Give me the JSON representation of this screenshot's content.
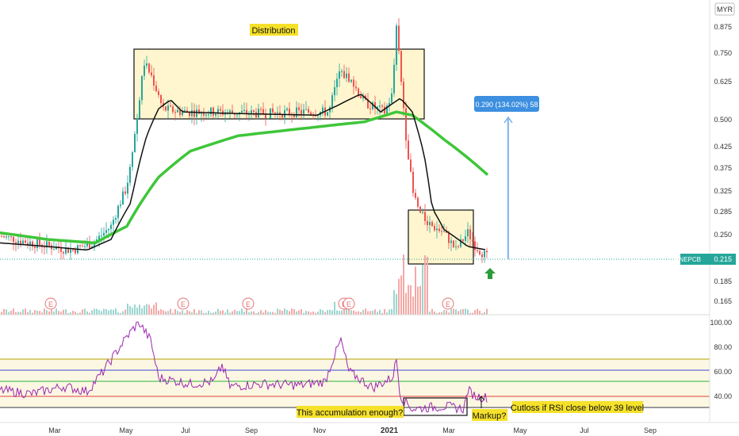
{
  "chart_data": {
    "type": "candlestick",
    "log_scale": true,
    "grid": false,
    "price_axis": {
      "label": "MYR",
      "ticks": [
        "0.875",
        "0.750",
        "0.625",
        "0.500",
        "0.425",
        "0.375",
        "0.325",
        "0.285",
        "0.250",
        "0.185",
        "0.165"
      ],
      "last_value": 0.215
    },
    "symbol_label": "PNEPCB",
    "last_label": "0.215",
    "time_axis": [
      "Mar",
      "May",
      "Jul",
      "Sep",
      "Nov",
      "2021",
      "Mar",
      "May",
      "Jul",
      "Sep"
    ],
    "anchors": {
      "apr_2020": 0.24,
      "may_early": 0.72,
      "may_distribution": 0.52,
      "dec_peak": 0.86,
      "jan_drop": 0.5,
      "jan_end": 0.28,
      "mar_low": 0.215
    },
    "moving_average_green_note": "long-period moving average",
    "annotations": {
      "distribution": "Distribution",
      "measure": "0.290 (134.02%) 58",
      "accumulation": "This accumulation enough?",
      "markup": "Markup?",
      "cutloss": "Cutloss if RSI close below 39 level"
    },
    "earnings_markers": [
      "E",
      "E",
      "E",
      "E",
      "E",
      "E"
    ],
    "rsi": {
      "ticks": [
        "100.00",
        "80.00",
        "60.00",
        "40.00"
      ],
      "levels": [
        70,
        61,
        52,
        39,
        30
      ],
      "level_colors": [
        "#b5a000",
        "#3a4bd8",
        "#2db33a",
        "#e04040",
        "#333333"
      ]
    },
    "colors": {
      "up": "#26a69a",
      "down": "#ef5350",
      "ma_green": "#3fc63a",
      "ma_black": "#111111",
      "rsi_line": "#9c27b0",
      "box_fill": "#fff6cf",
      "label_bg": "#f5e12a",
      "measure_blue": "#3d8fe0",
      "price_tag": "#26a69a"
    }
  }
}
